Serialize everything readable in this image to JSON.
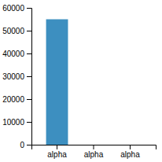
{
  "chart_data": {
    "type": "bar",
    "categories": [
      "alpha",
      "alpha",
      "alpha"
    ],
    "values": [
      55000,
      0,
      0
    ],
    "color": "#3d8fc0",
    "ylim": [
      0,
      60000
    ],
    "yticks": [
      0,
      10000,
      20000,
      30000,
      40000,
      50000,
      60000
    ],
    "grid": false
  }
}
